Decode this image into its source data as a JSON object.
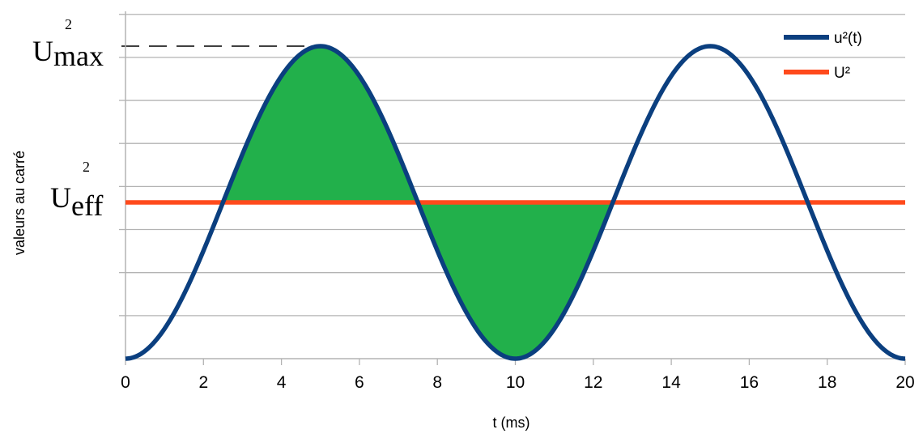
{
  "chart_data": {
    "type": "line",
    "xlabel": "t (ms)",
    "ylabel": "valeurs au carré",
    "xlim": [
      0,
      20
    ],
    "ylim": [
      0,
      1
    ],
    "x_ticks": [
      "0",
      "2",
      "4",
      "6",
      "8",
      "10",
      "12",
      "14",
      "16",
      "18",
      "20"
    ],
    "y_tick_count": 8,
    "grid": "horizontal",
    "legend_position": "top-right",
    "series": [
      {
        "name": "u²(t)",
        "color": "#0b3f7f",
        "x": [
          0,
          0.5,
          1,
          1.5,
          2,
          2.5,
          3,
          3.5,
          4,
          4.5,
          5,
          5.5,
          6,
          6.5,
          7,
          7.5,
          8,
          8.5,
          9,
          9.5,
          10,
          10.5,
          11,
          11.5,
          12,
          12.5,
          13,
          13.5,
          14,
          14.5,
          15,
          15.5,
          16,
          16.5,
          17,
          17.5,
          18,
          18.5,
          19,
          19.5,
          20
        ],
        "y": [
          0,
          0.024,
          0.095,
          0.206,
          0.345,
          0.5,
          0.655,
          0.794,
          0.905,
          0.976,
          1,
          0.976,
          0.905,
          0.794,
          0.655,
          0.5,
          0.345,
          0.206,
          0.095,
          0.024,
          0,
          0.024,
          0.095,
          0.206,
          0.345,
          0.5,
          0.655,
          0.794,
          0.905,
          0.976,
          1,
          0.976,
          0.905,
          0.794,
          0.655,
          0.5,
          0.345,
          0.206,
          0.095,
          0.024,
          0
        ]
      },
      {
        "name": "U²",
        "color": "#ff4a1c",
        "x": [
          0,
          20
        ],
        "y": [
          0.5,
          0.5
        ]
      }
    ],
    "shaded_region": {
      "x_start": 2.5,
      "x_end": 12.5,
      "color": "#22b04b",
      "between": [
        "u²(t)",
        "U²"
      ]
    },
    "annotations": [
      {
        "text": "U",
        "subscript": "max",
        "superscript": "2",
        "y": 1,
        "dashed_guide": true
      },
      {
        "text": "U",
        "subscript": "eff",
        "superscript": "2",
        "y": 0.5
      }
    ]
  }
}
